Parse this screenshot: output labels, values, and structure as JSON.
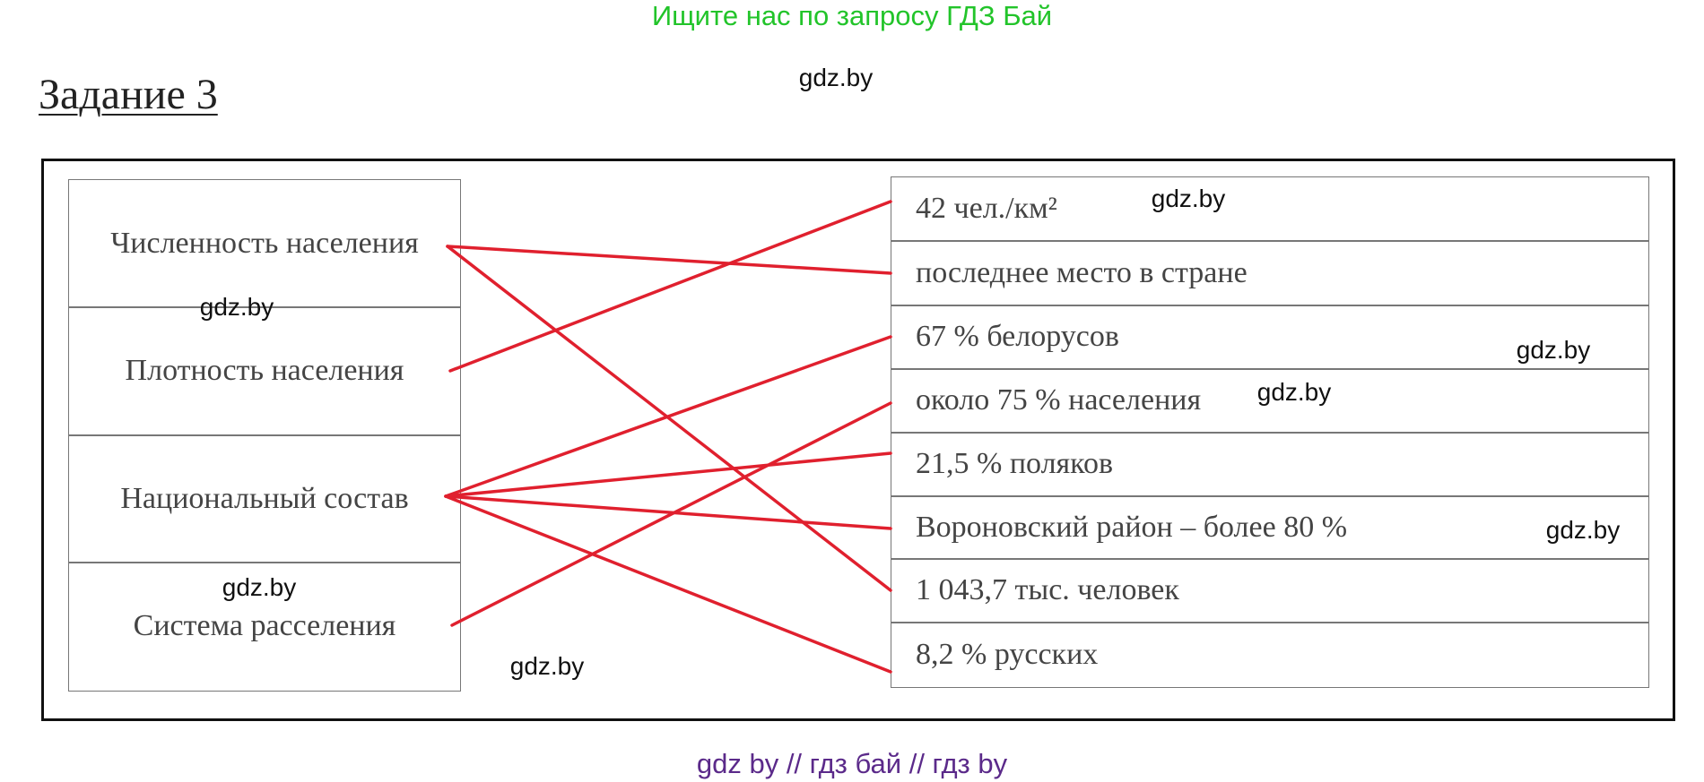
{
  "header": {
    "note": "Ищите нас по запросу ГДЗ Бай",
    "title": "Задание 3"
  },
  "left_items": [
    "Численность населения",
    "Плотность населения",
    "Национальный состав",
    "Система расселения"
  ],
  "right_items": [
    "42 чел./км²",
    "последнее место в стране",
    "67 % белорусов",
    "около 75 % населения",
    "21,5 % поляков",
    "Вороновский район – более 80 %",
    "1 043,7 тыс. человек",
    "8,2 % русских"
  ],
  "watermarks": [
    "gdz.by",
    "gdz.by",
    "gdz.by",
    "gdz.by",
    "gdz.by",
    "gdz.by",
    "gdz.by",
    "gdz.by"
  ],
  "footer": "gdz by  //  гдз бай  //  гдз by"
}
